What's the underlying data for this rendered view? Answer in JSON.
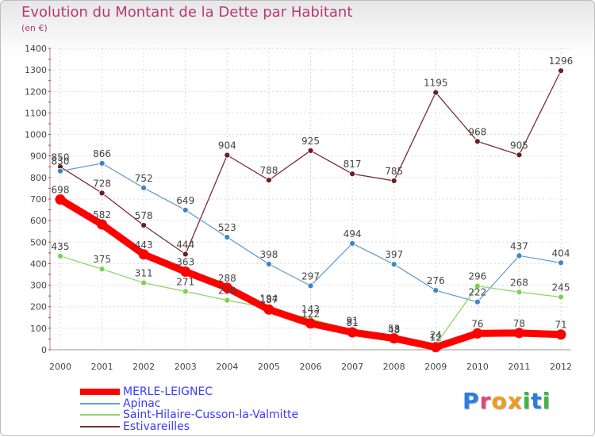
{
  "title": "Evolution du Montant de la Dette par Habitant",
  "unit": "(en €)",
  "logo": {
    "text": "Proxiti",
    "letters": [
      "P",
      "r",
      "o",
      "x",
      "i",
      "t",
      "i"
    ],
    "colors": [
      "#2a7de1",
      "#e0457b",
      "#f29a1f",
      "#f29a1f",
      "#3bb54a",
      "#2a7de1",
      "#3bb54a"
    ]
  },
  "chart_data": {
    "type": "line",
    "x": [
      "2000",
      "2001",
      "2002",
      "2003",
      "2004",
      "2005",
      "2006",
      "2007",
      "2008",
      "2009",
      "2010",
      "2011",
      "2012"
    ],
    "yticks": [
      "0",
      "100",
      "200",
      "300",
      "400",
      "500",
      "600",
      "700",
      "800",
      "900",
      "1000",
      "1100",
      "1200",
      "1300",
      "1400"
    ],
    "ylim": [
      0,
      1400
    ],
    "grid": true,
    "legend_position": "bottom-left",
    "series": [
      {
        "name": "MERLE-LEIGNEC",
        "color": "#ff0000",
        "marker_color": "#ff0000",
        "values": [
          698,
          582,
          443,
          363,
          288,
          187,
          122,
          81,
          53,
          12,
          76,
          78,
          71
        ],
        "labels": [
          "698",
          "582",
          "443",
          "363",
          "288",
          "187",
          "122",
          "81",
          "53",
          "12",
          "76",
          "78",
          "71"
        ]
      },
      {
        "name": "Apinac",
        "color": "#6a9fcb",
        "marker_color": "#3c86c8",
        "values": [
          830,
          866,
          752,
          649,
          523,
          398,
          297,
          494,
          397,
          276,
          222,
          437,
          404
        ],
        "labels": [
          "830",
          "866",
          "752",
          "649",
          "523",
          "398",
          "297",
          "494",
          "397",
          "276",
          "222",
          "437",
          "404"
        ]
      },
      {
        "name": "Saint-Hilaire-Cusson-la-Valmitte",
        "color": "#8ed66b",
        "marker_color": "#7bd04e",
        "values": [
          435,
          375,
          311,
          271,
          230,
          194,
          143,
          91,
          48,
          24,
          296,
          268,
          245
        ],
        "labels": [
          "435",
          "375",
          "311",
          "271",
          "230",
          "194",
          "143",
          "91",
          "48",
          "24",
          "296",
          "268",
          "245"
        ]
      },
      {
        "name": "Estivareilles",
        "color": "#7a2b34",
        "marker_color": "#6b1d22",
        "values": [
          850,
          728,
          578,
          444,
          904,
          788,
          925,
          817,
          785,
          1195,
          968,
          905,
          1296
        ],
        "labels": [
          "850",
          "728",
          "578",
          "444",
          "904",
          "788",
          "925",
          "817",
          "785",
          "1195",
          "968",
          "905",
          "1296"
        ]
      }
    ]
  }
}
